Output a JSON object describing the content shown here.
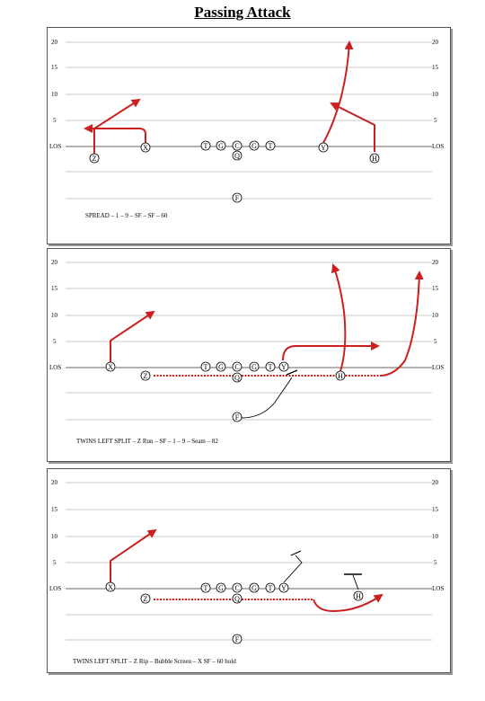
{
  "page_title": "Passing Attack",
  "colors": {
    "route": "#cc1f1f",
    "line": "#000000",
    "grid": "#c8c8c8"
  },
  "yard_labels": [
    "20",
    "15",
    "10",
    "5"
  ],
  "los_label": "LOS",
  "plays": [
    {
      "caption": "SPREAD – 1 – 9 – SF – SF – 60",
      "players": [
        {
          "label": "Z"
        },
        {
          "label": "X"
        },
        {
          "label": "T"
        },
        {
          "label": "G"
        },
        {
          "label": "C"
        },
        {
          "label": "Q"
        },
        {
          "label": "G"
        },
        {
          "label": "T"
        },
        {
          "label": "Y"
        },
        {
          "label": "H"
        },
        {
          "label": "F"
        }
      ]
    },
    {
      "caption": "TWINS LEFT SPLIT – Z Run – SF – 1 – 9 – Seam – 82",
      "players": [
        {
          "label": "X"
        },
        {
          "label": "Z"
        },
        {
          "label": "T"
        },
        {
          "label": "G"
        },
        {
          "label": "C"
        },
        {
          "label": "Q"
        },
        {
          "label": "G"
        },
        {
          "label": "T"
        },
        {
          "label": "Y"
        },
        {
          "label": "H"
        },
        {
          "label": "F"
        }
      ]
    },
    {
      "caption": "TWINS LEFT SPLIT – Z Rip – Bubble Screen – X SF – 60 hold",
      "players": [
        {
          "label": "X"
        },
        {
          "label": "Z"
        },
        {
          "label": "T"
        },
        {
          "label": "G"
        },
        {
          "label": "C"
        },
        {
          "label": "Q"
        },
        {
          "label": "G"
        },
        {
          "label": "T"
        },
        {
          "label": "Y"
        },
        {
          "label": "H"
        },
        {
          "label": "F"
        }
      ]
    }
  ]
}
